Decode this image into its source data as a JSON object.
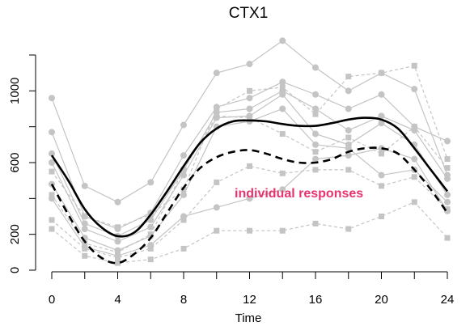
{
  "chart_data": {
    "type": "line",
    "title": "CTX1",
    "xlabel": "Time",
    "ylabel": "",
    "xlim": [
      0,
      24
    ],
    "ylim": [
      0,
      1200
    ],
    "x_ticks": [
      0,
      4,
      8,
      12,
      16,
      20,
      24
    ],
    "y_ticks": [
      0,
      200,
      600,
      1000
    ],
    "annotation": "individual responses",
    "grid": false,
    "legend": "none",
    "colors": {
      "individual": "#c4c4c4",
      "bold_curves": "#000000",
      "annotation": "#e8336d"
    },
    "individual_series": [
      {
        "style": "solid",
        "x": [
          0,
          2,
          4,
          6,
          8,
          10,
          12,
          14,
          16,
          18,
          20,
          22,
          24
        ],
        "values": [
          960,
          470,
          380,
          490,
          810,
          1100,
          1150,
          1280,
          1130,
          1000,
          1100,
          1010,
          530
        ]
      },
      {
        "style": "solid",
        "x": [
          0,
          2,
          4,
          6,
          8,
          10,
          12,
          14,
          16,
          18,
          20,
          22,
          24
        ],
        "values": [
          770,
          300,
          230,
          320,
          640,
          910,
          960,
          1050,
          980,
          900,
          980,
          800,
          720
        ]
      },
      {
        "style": "solid",
        "x": [
          0,
          2,
          4,
          6,
          8,
          10,
          12,
          14,
          16,
          18,
          20,
          22,
          24
        ],
        "values": [
          650,
          260,
          190,
          280,
          560,
          880,
          900,
          1000,
          900,
          780,
          860,
          780,
          510
        ]
      },
      {
        "style": "solid",
        "x": [
          0,
          2,
          4,
          6,
          8,
          10,
          12,
          14,
          16,
          18,
          20,
          22,
          24
        ],
        "values": [
          600,
          230,
          160,
          240,
          530,
          850,
          860,
          980,
          760,
          700,
          820,
          700,
          420
        ]
      },
      {
        "style": "solid",
        "x": [
          0,
          2,
          4,
          6,
          8,
          10,
          12,
          14,
          16,
          18,
          20,
          22,
          24
        ],
        "values": [
          480,
          180,
          110,
          190,
          420,
          800,
          830,
          900,
          700,
          680,
          530,
          560,
          380
        ]
      },
      {
        "style": "solid",
        "x": [
          0,
          2,
          4,
          6,
          8,
          10,
          12,
          14,
          16,
          18,
          20,
          22,
          24
        ],
        "values": [
          400,
          130,
          80,
          140,
          300,
          350,
          400,
          450,
          620,
          640,
          680,
          620,
          330
        ]
      },
      {
        "style": "dashed",
        "x": [
          0,
          2,
          4,
          6,
          8,
          10,
          12,
          14,
          16,
          18,
          20,
          22,
          24
        ],
        "values": [
          550,
          300,
          240,
          310,
          450,
          900,
          1000,
          1020,
          870,
          1080,
          1100,
          1140,
          620
        ]
      },
      {
        "style": "dashed",
        "x": [
          0,
          2,
          4,
          6,
          8,
          10,
          12,
          14,
          16,
          18,
          20,
          22,
          24
        ],
        "values": [
          420,
          150,
          100,
          200,
          560,
          860,
          850,
          760,
          660,
          740,
          650,
          800,
          570
        ]
      },
      {
        "style": "dashed",
        "x": [
          0,
          2,
          4,
          6,
          8,
          10,
          12,
          14,
          16,
          18,
          20,
          22,
          24
        ],
        "values": [
          280,
          120,
          70,
          120,
          280,
          490,
          580,
          540,
          560,
          560,
          470,
          520,
          340
        ]
      },
      {
        "style": "dashed",
        "x": [
          0,
          2,
          4,
          6,
          8,
          10,
          12,
          14,
          16,
          18,
          20,
          22,
          24
        ],
        "values": [
          230,
          80,
          40,
          60,
          120,
          220,
          220,
          220,
          260,
          230,
          300,
          380,
          180
        ]
      }
    ],
    "series": [
      {
        "style": "solid-bold",
        "x": [
          0,
          1,
          2,
          3,
          4,
          5,
          6,
          7,
          8,
          9,
          10,
          11,
          12,
          13,
          14,
          15,
          16,
          17,
          18,
          19,
          20,
          21,
          22,
          23,
          24
        ],
        "values": [
          640,
          500,
          340,
          240,
          190,
          210,
          310,
          440,
          580,
          710,
          790,
          830,
          835,
          830,
          815,
          805,
          805,
          820,
          840,
          850,
          840,
          790,
          680,
          560,
          440
        ]
      },
      {
        "style": "dashed-bold",
        "x": [
          0,
          1,
          2,
          3,
          4,
          5,
          6,
          7,
          8,
          9,
          10,
          11,
          12,
          13,
          14,
          15,
          16,
          17,
          18,
          19,
          20,
          21,
          22,
          23,
          24
        ],
        "values": [
          480,
          310,
          160,
          70,
          40,
          90,
          180,
          320,
          460,
          570,
          630,
          660,
          670,
          650,
          620,
          600,
          600,
          620,
          660,
          680,
          680,
          650,
          560,
          450,
          320
        ]
      }
    ]
  }
}
